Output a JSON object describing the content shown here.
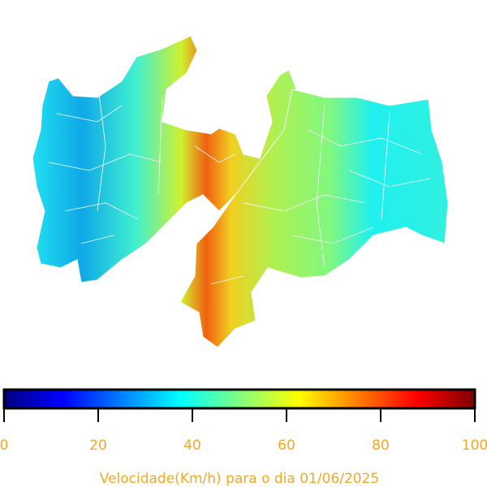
{
  "colorbar": {
    "label": "Velocidade(Km/h) para o dia 01/06/2025",
    "range": [
      0,
      100
    ],
    "ticks": [
      0,
      20,
      40,
      60,
      80,
      100
    ],
    "colormap": "jet"
  }
}
